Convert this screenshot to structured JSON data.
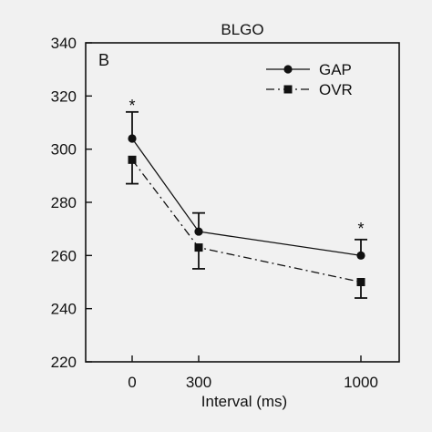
{
  "chart_data": {
    "type": "line",
    "title": "BLGO",
    "panel_label": "B",
    "xlabel": "Interval (ms)",
    "ylabel": "",
    "x": [
      0,
      300,
      1000
    ],
    "x_tick_labels": [
      "0",
      "300",
      "1000"
    ],
    "ylim": [
      220,
      340
    ],
    "y_ticks": [
      220,
      240,
      260,
      280,
      300,
      320,
      340
    ],
    "series": [
      {
        "name": "GAP",
        "marker": "circle",
        "line": "solid",
        "values": [
          304,
          269,
          260
        ],
        "error_upper": [
          314,
          276,
          266
        ],
        "error_lower": [
          null,
          null,
          null
        ]
      },
      {
        "name": "OVR",
        "marker": "square",
        "line": "dashed",
        "values": [
          296,
          263,
          250
        ],
        "error_upper": [
          null,
          null,
          null
        ],
        "error_lower": [
          287,
          255,
          244
        ]
      }
    ],
    "annotations": [
      {
        "text": "*",
        "x": 0
      },
      {
        "text": "*",
        "x": 1000
      }
    ],
    "legend_position": "top-right",
    "grid": false
  }
}
